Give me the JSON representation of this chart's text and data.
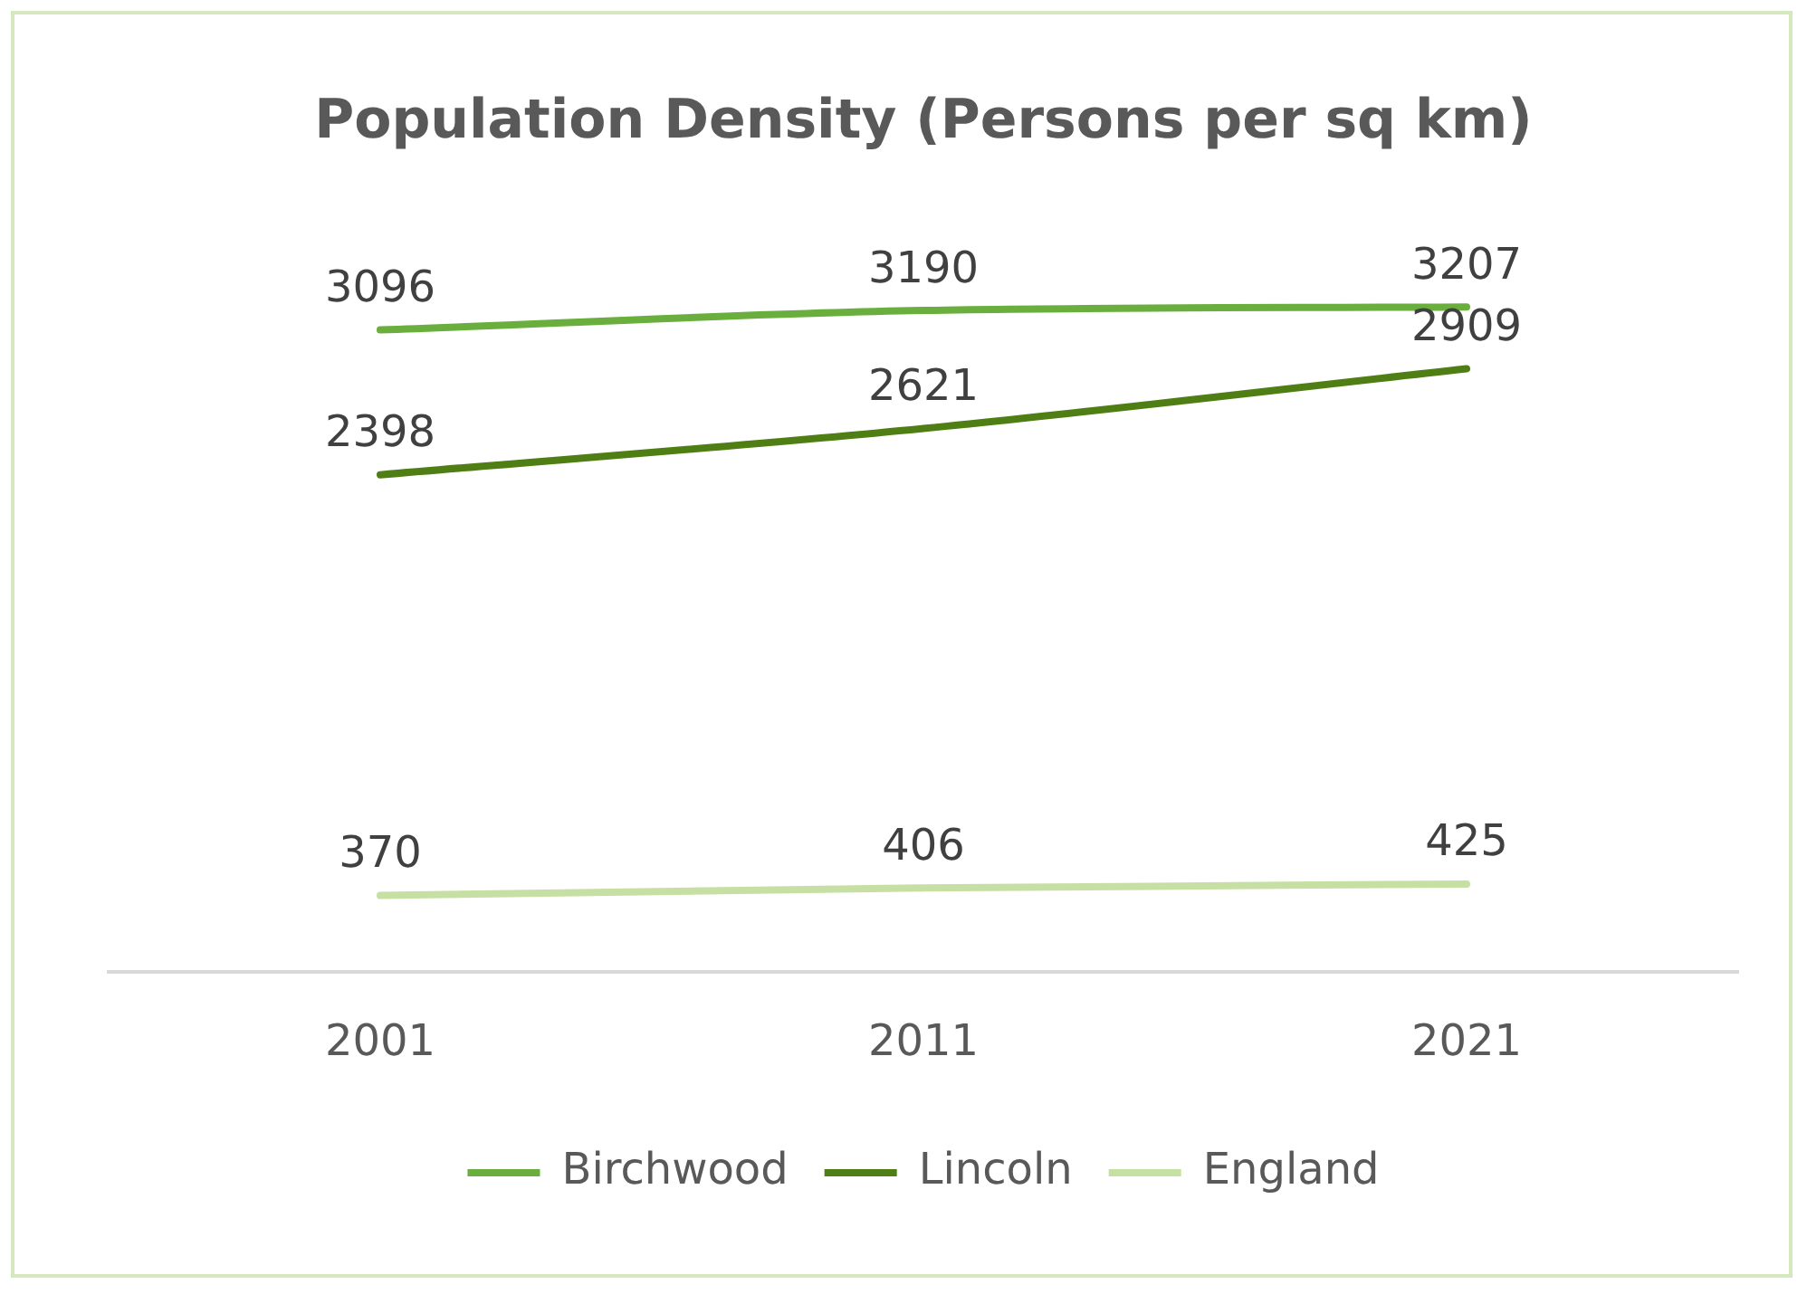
{
  "chart_data": {
    "type": "line",
    "title": "Population Density (Persons per sq km)",
    "categories": [
      "2001",
      "2011",
      "2021"
    ],
    "series": [
      {
        "name": "Birchwood",
        "color": "#6aae3e",
        "values": [
          3096,
          3190,
          3207
        ]
      },
      {
        "name": "Lincoln",
        "color": "#4f7f14",
        "values": [
          2398,
          2621,
          2909
        ]
      },
      {
        "name": "England",
        "color": "#c6e0a4",
        "values": [
          370,
          406,
          425
        ]
      }
    ],
    "tick_labels": "x",
    "grid": false,
    "legend": "bottom",
    "data_labels": true,
    "marker": "none"
  }
}
